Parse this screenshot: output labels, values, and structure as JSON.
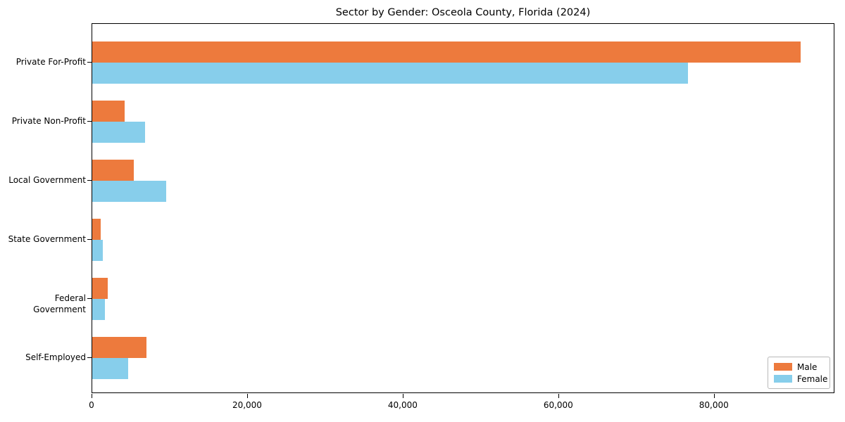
{
  "title": "Sector by Gender: Osceola County, Florida (2024)",
  "chart_data": {
    "type": "bar",
    "orientation": "horizontal",
    "title": "Sector by Gender: Osceola County, Florida (2024)",
    "categories": [
      "Private For-Profit",
      "Private Non-Profit",
      "Local Government",
      "State Government",
      "Federal Government",
      "Self-Employed"
    ],
    "series": [
      {
        "name": "Male",
        "color": "#ed7a3d",
        "values": [
          91100,
          4200,
          5300,
          1050,
          2000,
          7000
        ]
      },
      {
        "name": "Female",
        "color": "#87ceeb",
        "values": [
          76600,
          6800,
          9500,
          1400,
          1600,
          4600
        ]
      }
    ],
    "xlabel": "",
    "ylabel": "",
    "xlim": [
      0,
      95500
    ],
    "xticks": [
      0,
      20000,
      40000,
      60000,
      80000
    ],
    "xtick_labels": [
      "0",
      "20,000",
      "40,000",
      "60,000",
      "80,000"
    ],
    "grid": false,
    "legend_position": "lower right"
  },
  "legend": {
    "items": [
      {
        "label": "Male",
        "color": "#ed7a3d"
      },
      {
        "label": "Female",
        "color": "#87ceeb"
      }
    ]
  }
}
